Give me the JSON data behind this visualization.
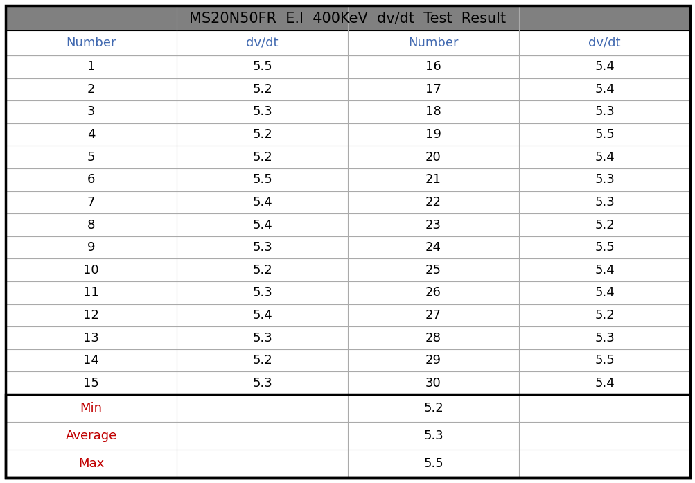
{
  "title": "MS20N50FR  E.I  400KeV  dv/dt  Test  Result",
  "title_bg": "#808080",
  "title_color": "#000000",
  "header_bg": "#ffffff",
  "header_color": "#4169b0",
  "col_headers": [
    "Number",
    "dv/dt",
    "Number",
    "dv/dt"
  ],
  "data_left": [
    [
      1,
      "5.5"
    ],
    [
      2,
      "5.2"
    ],
    [
      3,
      "5.3"
    ],
    [
      4,
      "5.2"
    ],
    [
      5,
      "5.2"
    ],
    [
      6,
      "5.5"
    ],
    [
      7,
      "5.4"
    ],
    [
      8,
      "5.4"
    ],
    [
      9,
      "5.3"
    ],
    [
      10,
      "5.2"
    ],
    [
      11,
      "5.3"
    ],
    [
      12,
      "5.4"
    ],
    [
      13,
      "5.3"
    ],
    [
      14,
      "5.2"
    ],
    [
      15,
      "5.3"
    ]
  ],
  "data_right": [
    [
      16,
      "5.4"
    ],
    [
      17,
      "5.4"
    ],
    [
      18,
      "5.3"
    ],
    [
      19,
      "5.5"
    ],
    [
      20,
      "5.4"
    ],
    [
      21,
      "5.3"
    ],
    [
      22,
      "5.3"
    ],
    [
      23,
      "5.2"
    ],
    [
      24,
      "5.5"
    ],
    [
      25,
      "5.4"
    ],
    [
      26,
      "5.4"
    ],
    [
      27,
      "5.2"
    ],
    [
      28,
      "5.3"
    ],
    [
      29,
      "5.5"
    ],
    [
      30,
      "5.4"
    ]
  ],
  "summary": [
    [
      "Min",
      "5.2"
    ],
    [
      "Average",
      "5.3"
    ],
    [
      "Max",
      "5.5"
    ]
  ],
  "data_color": "#000000",
  "summary_label_color": "#c00000",
  "summary_value_color": "#000000",
  "grid_line_color": "#aaaaaa",
  "outer_border_color": "#000000",
  "summary_border_color": "#000000",
  "white": "#ffffff"
}
